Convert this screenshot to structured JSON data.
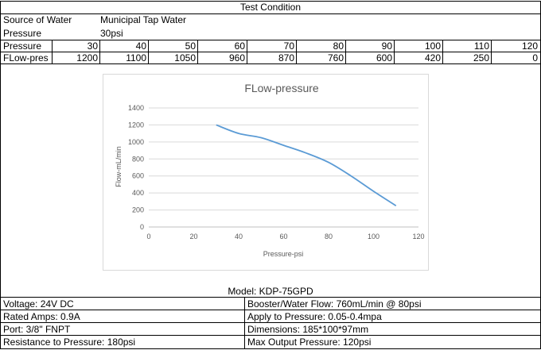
{
  "header": {
    "title": "Test Condition"
  },
  "conditions": [
    {
      "label": "Source of Water",
      "value": "Municipal Tap Water"
    },
    {
      "label": "Pressure",
      "value": "30psi"
    }
  ],
  "table": {
    "row1_label": "Pressure",
    "row1_values": [
      "30",
      "40",
      "50",
      "60",
      "70",
      "80",
      "90",
      "100",
      "110",
      "120"
    ],
    "row2_label": "FLow-pres",
    "row2_values": [
      "1200",
      "1100",
      "1050",
      "960",
      "870",
      "760",
      "600",
      "420",
      "250",
      "0"
    ]
  },
  "chart_data": {
    "type": "line",
    "title": "FLow-pressure",
    "xlabel": "Pressure-psi",
    "ylabel": "Flow-mL/min",
    "xlim": [
      0,
      120
    ],
    "ylim": [
      0,
      1400
    ],
    "xticks": [
      0,
      20,
      40,
      60,
      80,
      100,
      120
    ],
    "yticks": [
      0,
      200,
      400,
      600,
      800,
      1000,
      1200,
      1400
    ],
    "grid": "horizontal",
    "series": [
      {
        "x": [
          30,
          40,
          50,
          60,
          70,
          80,
          90,
          100,
          110
        ],
        "values": [
          1200,
          1100,
          1050,
          960,
          870,
          760,
          600,
          420,
          250
        ]
      }
    ],
    "line_color": "#5b9bd5"
  },
  "model": {
    "label": "Model: KDP-75GPD"
  },
  "specs": {
    "left": [
      "Voltage: 24V DC",
      "Rated Amps: 0.9A",
      "Port: 3/8\" FNPT",
      "Resistance to Pressure: 180psi"
    ],
    "right": [
      "Booster/Water Flow: 760mL/min @ 80psi",
      "Apply to Pressure: 0.05-0.4mpa",
      "Dimensions: 185*100*97mm",
      "Max Output Pressure: 120psi"
    ]
  }
}
